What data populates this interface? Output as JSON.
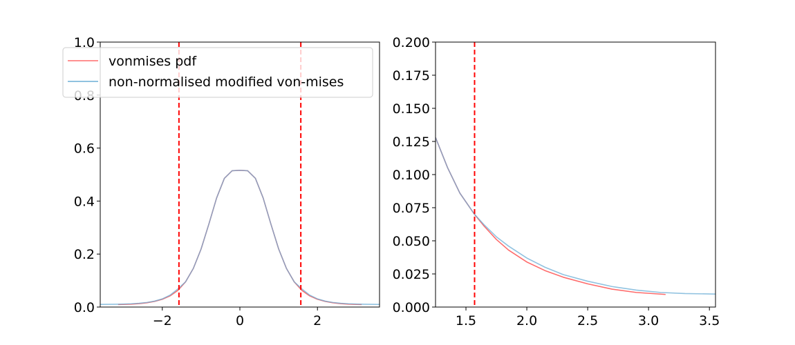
{
  "chart_data": [
    {
      "type": "line",
      "panel": "left",
      "xlim": [
        -3.6,
        3.6
      ],
      "ylim": [
        0,
        1.0
      ],
      "xticks": [
        -2,
        0,
        2
      ],
      "xtick_labels": [
        "−2",
        "0",
        "2"
      ],
      "yticks": [
        0.0,
        0.2,
        0.4,
        0.6,
        0.8,
        1.0
      ],
      "ytick_labels": [
        "0.0",
        "0.2",
        "0.4",
        "0.6",
        "0.8",
        "1.0"
      ],
      "vlines": [
        -1.5708,
        1.5708
      ],
      "vline_color": "#ff0000",
      "legend": {
        "placement": "upper-left",
        "entries": [
          {
            "label": "vonmises pdf",
            "color": "#ff6b6b"
          },
          {
            "label": "non-normalised modified von-mises",
            "color": "#6baed6"
          }
        ]
      },
      "series": [
        {
          "name": "vonmises pdf",
          "color": "#ff6b6b",
          "x": [
            -3.14,
            -3.0,
            -2.8,
            -2.6,
            -2.4,
            -2.2,
            -2.0,
            -1.8,
            -1.6,
            -1.4,
            -1.2,
            -1.0,
            -0.8,
            -0.6,
            -0.4,
            -0.2,
            0.0,
            0.2,
            0.4,
            0.6,
            0.8,
            1.0,
            1.2,
            1.4,
            1.6,
            1.8,
            2.0,
            2.2,
            2.4,
            2.6,
            2.8,
            3.0,
            3.14
          ],
          "y": [
            0.0095,
            0.0098,
            0.0109,
            0.0129,
            0.0162,
            0.0213,
            0.0294,
            0.0422,
            0.0626,
            0.0952,
            0.1458,
            0.2191,
            0.313,
            0.4116,
            0.4858,
            0.5145,
            0.516,
            0.5145,
            0.4858,
            0.4116,
            0.313,
            0.2191,
            0.1458,
            0.0952,
            0.0626,
            0.0422,
            0.0294,
            0.0213,
            0.0162,
            0.0129,
            0.0109,
            0.0098,
            0.0095
          ]
        },
        {
          "name": "non-normalised modified von-mises",
          "color": "#6baed6",
          "x": [
            -3.6,
            -3.4,
            -3.2,
            -3.0,
            -2.8,
            -2.6,
            -2.4,
            -2.2,
            -2.0,
            -1.8,
            -1.6,
            -1.4,
            -1.2,
            -1.0,
            -0.8,
            -0.6,
            -0.4,
            -0.2,
            0.0,
            0.2,
            0.4,
            0.6,
            0.8,
            1.0,
            1.2,
            1.4,
            1.6,
            1.8,
            2.0,
            2.2,
            2.4,
            2.6,
            2.8,
            3.0,
            3.2,
            3.4,
            3.6
          ],
          "y": [
            0.01,
            0.0102,
            0.0106,
            0.0113,
            0.0124,
            0.0142,
            0.0173,
            0.0223,
            0.0308,
            0.045,
            0.068,
            0.0952,
            0.1458,
            0.2191,
            0.313,
            0.4116,
            0.4858,
            0.5145,
            0.516,
            0.5145,
            0.4858,
            0.4116,
            0.313,
            0.2191,
            0.1458,
            0.0952,
            0.068,
            0.045,
            0.0308,
            0.0223,
            0.0173,
            0.0142,
            0.0124,
            0.0113,
            0.0106,
            0.0102,
            0.01
          ]
        }
      ]
    },
    {
      "type": "line",
      "panel": "right",
      "xlim": [
        1.25,
        3.55
      ],
      "ylim": [
        0,
        0.2
      ],
      "xticks": [
        1.5,
        2.0,
        2.5,
        3.0,
        3.5
      ],
      "xtick_labels": [
        "1.5",
        "2.0",
        "2.5",
        "3.0",
        "3.5"
      ],
      "yticks": [
        0.0,
        0.025,
        0.05,
        0.075,
        0.1,
        0.125,
        0.15,
        0.175,
        0.2
      ],
      "ytick_labels": [
        "0.000",
        "0.025",
        "0.050",
        "0.075",
        "0.100",
        "0.125",
        "0.150",
        "0.175",
        "0.200"
      ],
      "vlines": [
        1.5708
      ],
      "vline_color": "#ff0000",
      "series": [
        {
          "name": "vonmises pdf",
          "color": "#ff6b6b",
          "x": [
            1.25,
            1.35,
            1.45,
            1.57,
            1.65,
            1.75,
            1.85,
            2.0,
            2.15,
            2.3,
            2.5,
            2.7,
            2.9,
            3.14
          ],
          "y": [
            0.128,
            0.105,
            0.086,
            0.07,
            0.061,
            0.051,
            0.043,
            0.034,
            0.0275,
            0.0225,
            0.0175,
            0.0135,
            0.011,
            0.0095
          ]
        },
        {
          "name": "non-normalised modified von-mises",
          "color": "#6baed6",
          "x": [
            1.25,
            1.35,
            1.45,
            1.57,
            1.65,
            1.75,
            1.85,
            2.0,
            2.15,
            2.3,
            2.5,
            2.7,
            2.9,
            3.1,
            3.3,
            3.55
          ],
          "y": [
            0.128,
            0.105,
            0.086,
            0.07,
            0.062,
            0.053,
            0.046,
            0.037,
            0.03,
            0.0245,
            0.0195,
            0.0155,
            0.0128,
            0.011,
            0.0102,
            0.0098
          ]
        }
      ]
    }
  ]
}
